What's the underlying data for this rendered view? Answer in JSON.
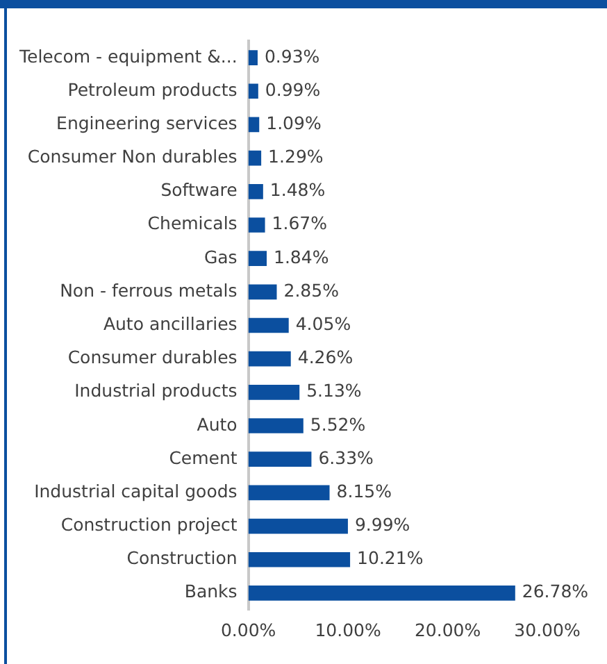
{
  "chart_data": {
    "type": "bar",
    "orientation": "horizontal",
    "categories": [
      "Telecom - equipment &...",
      "Petroleum products",
      "Engineering services",
      "Consumer Non durables",
      "Software",
      "Chemicals",
      "Gas",
      "Non - ferrous metals",
      "Auto ancillaries",
      "Consumer durables",
      "Industrial products",
      "Auto",
      "Cement",
      "Industrial capital goods",
      "Construction project",
      "Construction",
      "Banks"
    ],
    "values": [
      0.93,
      0.99,
      1.09,
      1.29,
      1.48,
      1.67,
      1.84,
      2.85,
      4.05,
      4.26,
      5.13,
      5.52,
      6.33,
      8.15,
      9.99,
      10.21,
      26.78
    ],
    "value_labels": [
      "0.93%",
      "0.99%",
      "1.09%",
      "1.29%",
      "1.48%",
      "1.67%",
      "1.84%",
      "2.85%",
      "4.05%",
      "4.26%",
      "5.13%",
      "5.52%",
      "6.33%",
      "8.15%",
      "9.99%",
      "10.21%",
      "26.78%"
    ],
    "color": "#0b4f9f",
    "xlim": [
      0,
      30
    ],
    "xticks": [
      {
        "value": 0,
        "label": "0.00%"
      },
      {
        "value": 10,
        "label": "10.00%"
      },
      {
        "value": 20,
        "label": "20.00%"
      },
      {
        "value": 30,
        "label": "30.00%"
      }
    ],
    "grid": false,
    "legend": false
  }
}
